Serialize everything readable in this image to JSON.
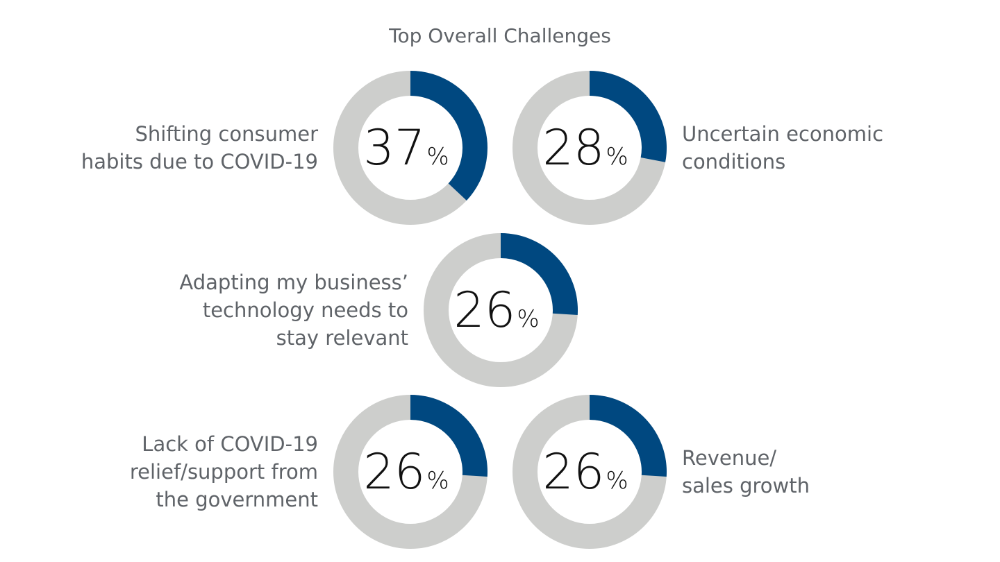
{
  "colors": {
    "filled": "#004880",
    "remainder": "#cdcecc",
    "label": "#5f6368",
    "value": "#111111"
  },
  "chart_data": {
    "type": "pie",
    "variant": "donut",
    "title": "Top Overall Challenges",
    "unit": "%",
    "items": [
      {
        "label_lines": [
          "Shifting consumer",
          "habits due to COVID-19"
        ],
        "value": 37,
        "label_side": "left"
      },
      {
        "label_lines": [
          "Uncertain economic",
          "conditions"
        ],
        "value": 28,
        "label_side": "right"
      },
      {
        "label_lines": [
          "Adapting my business’",
          "technology needs to",
          "stay relevant"
        ],
        "value": 26,
        "label_side": "left"
      },
      {
        "label_lines": [
          "Lack of COVID-19",
          "relief/support from",
          "the government"
        ],
        "value": 26,
        "label_side": "left"
      },
      {
        "label_lines": [
          "Revenue/",
          "sales growth"
        ],
        "value": 26,
        "label_side": "right"
      }
    ]
  }
}
